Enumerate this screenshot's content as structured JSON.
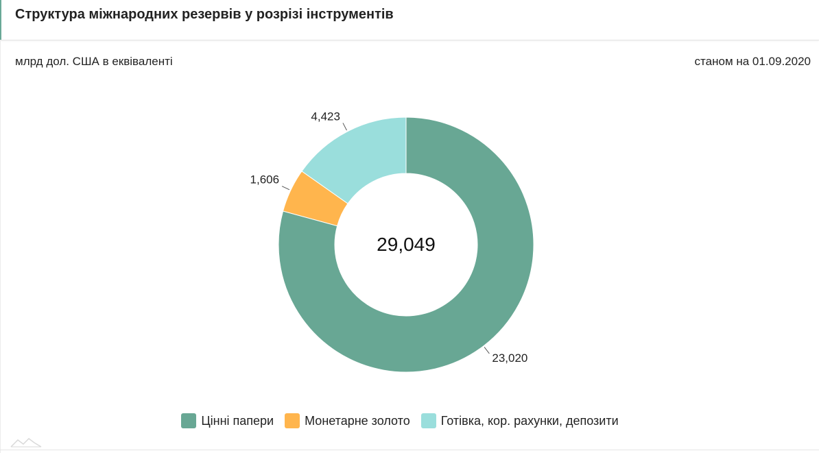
{
  "header": {
    "title": "Структура міжнародних резервів у розрізі інструментів"
  },
  "subheader": {
    "unit": "млрд дол. США в еквіваленті",
    "as_of": "станом на 01.09.2020"
  },
  "chart_data": {
    "type": "pie",
    "variant": "donut",
    "center_label": "29,049",
    "legend_position": "bottom",
    "slices": [
      {
        "name": "Цінні папери",
        "value": 23.02,
        "label": "23,020",
        "color": "#68a794"
      },
      {
        "name": "Монетарне золото",
        "value": 1.606,
        "label": "1,606",
        "color": "#ffb54d"
      },
      {
        "name": "Готівка, кор. рахунки, депозити",
        "value": 4.423,
        "label": "4,423",
        "color": "#9adedc"
      }
    ]
  },
  "legend": {
    "items": [
      {
        "label": "Цінні папери",
        "color": "#68a794"
      },
      {
        "label": "Монетарне золото",
        "color": "#ffb54d"
      },
      {
        "label": "Готівка, кор. рахунки, депозити",
        "color": "#9adedc"
      }
    ]
  }
}
